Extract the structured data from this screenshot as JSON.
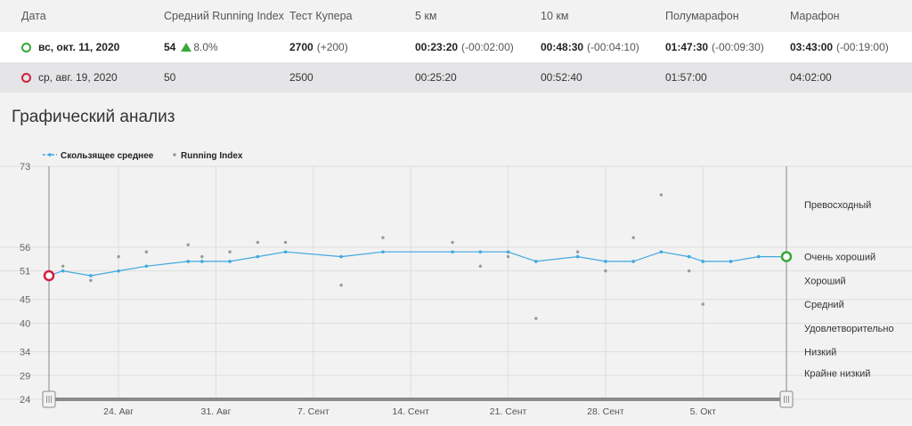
{
  "table": {
    "headers": [
      "Дата",
      "Средний Running Index",
      "Тест Купера",
      "5 км",
      "10 км",
      "Полумарафон",
      "Марафон"
    ],
    "rows": [
      {
        "date": "вс, окт. 11, 2020",
        "ring_color": "#3aa83a",
        "running_index": "54",
        "ri_change": "8.0%",
        "cooper": "2700",
        "cooper_diff": "(+200)",
        "k5": "00:23:20",
        "k5_diff": "(-00:02:00)",
        "k10": "00:48:30",
        "k10_diff": "(-00:04:10)",
        "half": "01:47:30",
        "half_diff": "(-00:09:30)",
        "marathon": "03:43:00",
        "marathon_diff": "(-00:19:00)"
      },
      {
        "date": "ср, авг. 19, 2020",
        "ring_color": "#d0203a",
        "running_index": "50",
        "cooper": "2500",
        "k5": "00:25:20",
        "k10": "00:52:40",
        "half": "01:57:00",
        "marathon": "04:02:00"
      }
    ]
  },
  "section_title": "Графический анализ",
  "chart_data": {
    "type": "line",
    "legend": [
      {
        "name": "Скользящее среднее",
        "color": "#3ea8e0"
      },
      {
        "name": "Running Index",
        "color": "#999999"
      }
    ],
    "x_start": "2020-08-19",
    "x_end": "2020-10-11",
    "xticks": [
      {
        "date": "2020-08-24",
        "label": "24. Авг"
      },
      {
        "date": "2020-08-31",
        "label": "31. Авг"
      },
      {
        "date": "2020-09-07",
        "label": "7. Сент"
      },
      {
        "date": "2020-09-14",
        "label": "14. Сент"
      },
      {
        "date": "2020-09-21",
        "label": "21. Сент"
      },
      {
        "date": "2020-09-28",
        "label": "28. Сент"
      },
      {
        "date": "2020-10-05",
        "label": "5. Окт"
      }
    ],
    "yticks": [
      24,
      29,
      34,
      40,
      45,
      51,
      56,
      73
    ],
    "ylim": [
      24,
      73
    ],
    "zones": [
      {
        "label": "Превосходный",
        "value": 65
      },
      {
        "label": "Очень хороший",
        "value": 54
      },
      {
        "label": "Хороший",
        "value": 49
      },
      {
        "label": "Средний",
        "value": 44
      },
      {
        "label": "Удовлетворительно",
        "value": 39
      },
      {
        "label": "Низкий",
        "value": 34
      },
      {
        "label": "Крайне низкий",
        "value": 29.5
      }
    ],
    "series": [
      {
        "name": "Скользящее среднее",
        "color": "#3ea8e0",
        "points": [
          [
            "2020-08-19",
            50
          ],
          [
            "2020-08-20",
            51
          ],
          [
            "2020-08-22",
            50
          ],
          [
            "2020-08-24",
            51
          ],
          [
            "2020-08-26",
            52
          ],
          [
            "2020-08-29",
            53
          ],
          [
            "2020-08-30",
            53
          ],
          [
            "2020-09-01",
            53
          ],
          [
            "2020-09-03",
            54
          ],
          [
            "2020-09-05",
            55
          ],
          [
            "2020-09-09",
            54
          ],
          [
            "2020-09-12",
            55
          ],
          [
            "2020-09-17",
            55
          ],
          [
            "2020-09-19",
            55
          ],
          [
            "2020-09-21",
            55
          ],
          [
            "2020-09-23",
            53
          ],
          [
            "2020-09-26",
            54
          ],
          [
            "2020-09-28",
            53
          ],
          [
            "2020-09-30",
            53
          ],
          [
            "2020-10-02",
            55
          ],
          [
            "2020-10-04",
            54
          ],
          [
            "2020-10-05",
            53
          ],
          [
            "2020-10-07",
            53
          ],
          [
            "2020-10-09",
            54
          ],
          [
            "2020-10-11",
            54
          ]
        ]
      },
      {
        "name": "Running Index",
        "color": "#999999",
        "points": [
          [
            "2020-08-20",
            52
          ],
          [
            "2020-08-22",
            49
          ],
          [
            "2020-08-24",
            54
          ],
          [
            "2020-08-26",
            55
          ],
          [
            "2020-08-29",
            56.5
          ],
          [
            "2020-08-30",
            54
          ],
          [
            "2020-09-01",
            55
          ],
          [
            "2020-09-03",
            57
          ],
          [
            "2020-09-05",
            57
          ],
          [
            "2020-09-09",
            48
          ],
          [
            "2020-09-12",
            58
          ],
          [
            "2020-09-17",
            57
          ],
          [
            "2020-09-19",
            52
          ],
          [
            "2020-09-21",
            54
          ],
          [
            "2020-09-23",
            41
          ],
          [
            "2020-09-26",
            55
          ],
          [
            "2020-09-28",
            51
          ],
          [
            "2020-09-30",
            58
          ],
          [
            "2020-10-02",
            67
          ],
          [
            "2020-10-04",
            51
          ],
          [
            "2020-10-05",
            44
          ]
        ]
      }
    ],
    "start_marker": {
      "date": "2020-08-19",
      "value": 50,
      "color": "#d0203a"
    },
    "end_marker": {
      "date": "2020-10-11",
      "value": 54,
      "color": "#3aa83a"
    }
  }
}
